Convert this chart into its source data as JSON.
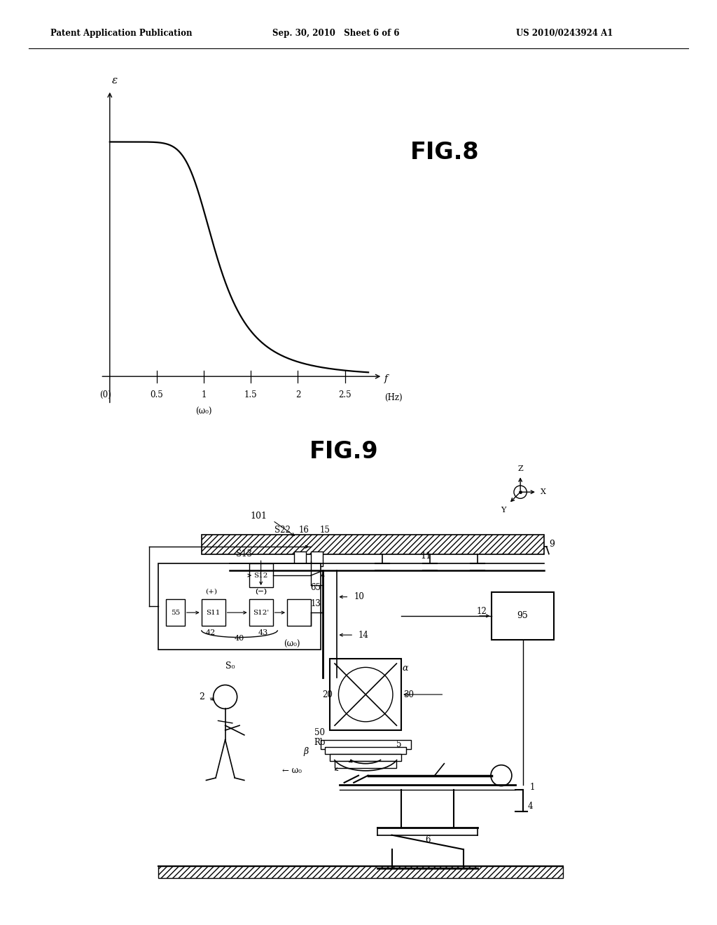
{
  "bg_color": "#ffffff",
  "page_width": 10.24,
  "page_height": 13.2,
  "header_text_left": "Patent Application Publication",
  "header_text_mid": "Sep. 30, 2010   Sheet 6 of 6",
  "header_text_right": "US 2010/0243924 A1",
  "fig8_title": "FIG.8",
  "fig9_title": "FIG.9",
  "line_color": "#000000",
  "text_color": "#000000"
}
